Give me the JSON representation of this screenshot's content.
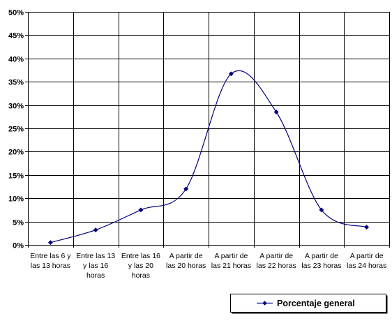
{
  "chart_data": {
    "type": "line",
    "categories": [
      [
        "Entre las 6 y",
        "las 13 horas"
      ],
      [
        "Entre las 13",
        "y las 16",
        "horas"
      ],
      [
        "Entre las 16",
        "y las 20",
        "horas"
      ],
      [
        "A partir de",
        "las 20 horas"
      ],
      [
        "A partir de",
        "las 21 horas"
      ],
      [
        "A partir de",
        "las 22 horas"
      ],
      [
        "A partir de",
        "las 23 horas"
      ],
      [
        "A partir de",
        "las 24 horas"
      ]
    ],
    "series": [
      {
        "name": "Porcentaje general",
        "values": [
          0.5,
          3.2,
          7.5,
          12.0,
          36.7,
          28.5,
          7.5,
          3.8
        ],
        "color": "#000080"
      }
    ],
    "ylim": [
      0,
      50
    ],
    "yticks": [
      "0%",
      "5%",
      "10%",
      "15%",
      "20%",
      "25%",
      "30%",
      "35%",
      "40%",
      "45%",
      "50%"
    ],
    "smooth": true,
    "grid": true,
    "legend": "bottom-right"
  }
}
